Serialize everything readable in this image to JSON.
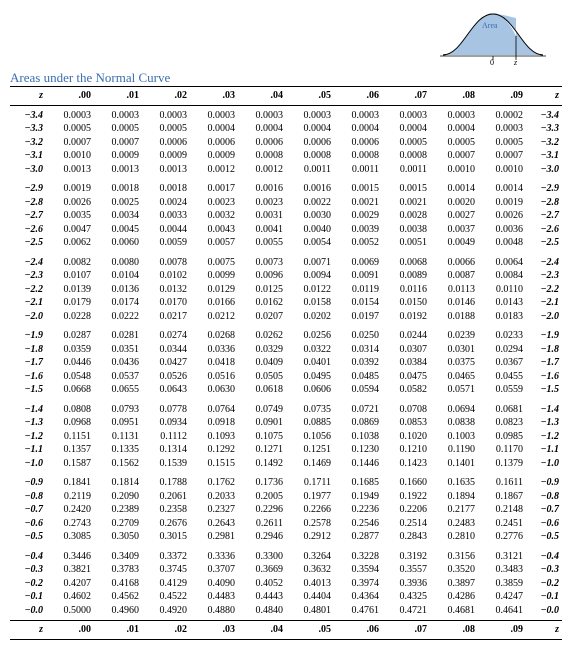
{
  "title": "Areas under the Normal Curve",
  "title_color": "#3a6fb0",
  "curve": {
    "label": "Area",
    "label_color": "#3a6fb0",
    "fill_color": "#a7c4e2",
    "line_color": "#3a6fb0",
    "axis_label_0": "0",
    "axis_label_z": "z"
  },
  "header": {
    "z": "z",
    "cols": [
      ".00",
      ".01",
      ".02",
      ".03",
      ".04",
      ".05",
      ".06",
      ".07",
      ".08",
      ".09"
    ]
  },
  "group_size": 5,
  "groups": [
    [
      {
        "z": "−3.4",
        "v": [
          "0.0003",
          "0.0003",
          "0.0003",
          "0.0003",
          "0.0003",
          "0.0003",
          "0.0003",
          "0.0003",
          "0.0003",
          "0.0002"
        ]
      },
      {
        "z": "−3.3",
        "v": [
          "0.0005",
          "0.0005",
          "0.0005",
          "0.0004",
          "0.0004",
          "0.0004",
          "0.0004",
          "0.0004",
          "0.0004",
          "0.0003"
        ]
      },
      {
        "z": "−3.2",
        "v": [
          "0.0007",
          "0.0007",
          "0.0006",
          "0.0006",
          "0.0006",
          "0.0006",
          "0.0006",
          "0.0005",
          "0.0005",
          "0.0005"
        ]
      },
      {
        "z": "−3.1",
        "v": [
          "0.0010",
          "0.0009",
          "0.0009",
          "0.0009",
          "0.0008",
          "0.0008",
          "0.0008",
          "0.0008",
          "0.0007",
          "0.0007"
        ]
      },
      {
        "z": "−3.0",
        "v": [
          "0.0013",
          "0.0013",
          "0.0013",
          "0.0012",
          "0.0012",
          "0.0011",
          "0.0011",
          "0.0011",
          "0.0010",
          "0.0010"
        ]
      }
    ],
    [
      {
        "z": "−2.9",
        "v": [
          "0.0019",
          "0.0018",
          "0.0018",
          "0.0017",
          "0.0016",
          "0.0016",
          "0.0015",
          "0.0015",
          "0.0014",
          "0.0014"
        ]
      },
      {
        "z": "−2.8",
        "v": [
          "0.0026",
          "0.0025",
          "0.0024",
          "0.0023",
          "0.0023",
          "0.0022",
          "0.0021",
          "0.0021",
          "0.0020",
          "0.0019"
        ]
      },
      {
        "z": "−2.7",
        "v": [
          "0.0035",
          "0.0034",
          "0.0033",
          "0.0032",
          "0.0031",
          "0.0030",
          "0.0029",
          "0.0028",
          "0.0027",
          "0.0026"
        ]
      },
      {
        "z": "−2.6",
        "v": [
          "0.0047",
          "0.0045",
          "0.0044",
          "0.0043",
          "0.0041",
          "0.0040",
          "0.0039",
          "0.0038",
          "0.0037",
          "0.0036"
        ]
      },
      {
        "z": "−2.5",
        "v": [
          "0.0062",
          "0.0060",
          "0.0059",
          "0.0057",
          "0.0055",
          "0.0054",
          "0.0052",
          "0.0051",
          "0.0049",
          "0.0048"
        ]
      }
    ],
    [
      {
        "z": "−2.4",
        "v": [
          "0.0082",
          "0.0080",
          "0.0078",
          "0.0075",
          "0.0073",
          "0.0071",
          "0.0069",
          "0.0068",
          "0.0066",
          "0.0064"
        ]
      },
      {
        "z": "−2.3",
        "v": [
          "0.0107",
          "0.0104",
          "0.0102",
          "0.0099",
          "0.0096",
          "0.0094",
          "0.0091",
          "0.0089",
          "0.0087",
          "0.0084"
        ]
      },
      {
        "z": "−2.2",
        "v": [
          "0.0139",
          "0.0136",
          "0.0132",
          "0.0129",
          "0.0125",
          "0.0122",
          "0.0119",
          "0.0116",
          "0.0113",
          "0.0110"
        ]
      },
      {
        "z": "−2.1",
        "v": [
          "0.0179",
          "0.0174",
          "0.0170",
          "0.0166",
          "0.0162",
          "0.0158",
          "0.0154",
          "0.0150",
          "0.0146",
          "0.0143"
        ]
      },
      {
        "z": "−2.0",
        "v": [
          "0.0228",
          "0.0222",
          "0.0217",
          "0.0212",
          "0.0207",
          "0.0202",
          "0.0197",
          "0.0192",
          "0.0188",
          "0.0183"
        ]
      }
    ],
    [
      {
        "z": "−1.9",
        "v": [
          "0.0287",
          "0.0281",
          "0.0274",
          "0.0268",
          "0.0262",
          "0.0256",
          "0.0250",
          "0.0244",
          "0.0239",
          "0.0233"
        ]
      },
      {
        "z": "−1.8",
        "v": [
          "0.0359",
          "0.0351",
          "0.0344",
          "0.0336",
          "0.0329",
          "0.0322",
          "0.0314",
          "0.0307",
          "0.0301",
          "0.0294"
        ]
      },
      {
        "z": "−1.7",
        "v": [
          "0.0446",
          "0.0436",
          "0.0427",
          "0.0418",
          "0.0409",
          "0.0401",
          "0.0392",
          "0.0384",
          "0.0375",
          "0.0367"
        ]
      },
      {
        "z": "−1.6",
        "v": [
          "0.0548",
          "0.0537",
          "0.0526",
          "0.0516",
          "0.0505",
          "0.0495",
          "0.0485",
          "0.0475",
          "0.0465",
          "0.0455"
        ]
      },
      {
        "z": "−1.5",
        "v": [
          "0.0668",
          "0.0655",
          "0.0643",
          "0.0630",
          "0.0618",
          "0.0606",
          "0.0594",
          "0.0582",
          "0.0571",
          "0.0559"
        ]
      }
    ],
    [
      {
        "z": "−1.4",
        "v": [
          "0.0808",
          "0.0793",
          "0.0778",
          "0.0764",
          "0.0749",
          "0.0735",
          "0.0721",
          "0.0708",
          "0.0694",
          "0.0681"
        ]
      },
      {
        "z": "−1.3",
        "v": [
          "0.0968",
          "0.0951",
          "0.0934",
          "0.0918",
          "0.0901",
          "0.0885",
          "0.0869",
          "0.0853",
          "0.0838",
          "0.0823"
        ]
      },
      {
        "z": "−1.2",
        "v": [
          "0.1151",
          "0.1131",
          "0.1112",
          "0.1093",
          "0.1075",
          "0.1056",
          "0.1038",
          "0.1020",
          "0.1003",
          "0.0985"
        ]
      },
      {
        "z": "−1.1",
        "v": [
          "0.1357",
          "0.1335",
          "0.1314",
          "0.1292",
          "0.1271",
          "0.1251",
          "0.1230",
          "0.1210",
          "0.1190",
          "0.1170"
        ]
      },
      {
        "z": "−1.0",
        "v": [
          "0.1587",
          "0.1562",
          "0.1539",
          "0.1515",
          "0.1492",
          "0.1469",
          "0.1446",
          "0.1423",
          "0.1401",
          "0.1379"
        ]
      }
    ],
    [
      {
        "z": "−0.9",
        "v": [
          "0.1841",
          "0.1814",
          "0.1788",
          "0.1762",
          "0.1736",
          "0.1711",
          "0.1685",
          "0.1660",
          "0.1635",
          "0.1611"
        ]
      },
      {
        "z": "−0.8",
        "v": [
          "0.2119",
          "0.2090",
          "0.2061",
          "0.2033",
          "0.2005",
          "0.1977",
          "0.1949",
          "0.1922",
          "0.1894",
          "0.1867"
        ]
      },
      {
        "z": "−0.7",
        "v": [
          "0.2420",
          "0.2389",
          "0.2358",
          "0.2327",
          "0.2296",
          "0.2266",
          "0.2236",
          "0.2206",
          "0.2177",
          "0.2148"
        ]
      },
      {
        "z": "−0.6",
        "v": [
          "0.2743",
          "0.2709",
          "0.2676",
          "0.2643",
          "0.2611",
          "0.2578",
          "0.2546",
          "0.2514",
          "0.2483",
          "0.2451"
        ]
      },
      {
        "z": "−0.5",
        "v": [
          "0.3085",
          "0.3050",
          "0.3015",
          "0.2981",
          "0.2946",
          "0.2912",
          "0.2877",
          "0.2843",
          "0.2810",
          "0.2776"
        ]
      }
    ],
    [
      {
        "z": "−0.4",
        "v": [
          "0.3446",
          "0.3409",
          "0.3372",
          "0.3336",
          "0.3300",
          "0.3264",
          "0.3228",
          "0.3192",
          "0.3156",
          "0.3121"
        ]
      },
      {
        "z": "−0.3",
        "v": [
          "0.3821",
          "0.3783",
          "0.3745",
          "0.3707",
          "0.3669",
          "0.3632",
          "0.3594",
          "0.3557",
          "0.3520",
          "0.3483"
        ]
      },
      {
        "z": "−0.2",
        "v": [
          "0.4207",
          "0.4168",
          "0.4129",
          "0.4090",
          "0.4052",
          "0.4013",
          "0.3974",
          "0.3936",
          "0.3897",
          "0.3859"
        ]
      },
      {
        "z": "−0.1",
        "v": [
          "0.4602",
          "0.4562",
          "0.4522",
          "0.4483",
          "0.4443",
          "0.4404",
          "0.4364",
          "0.4325",
          "0.4286",
          "0.4247"
        ]
      },
      {
        "z": "−0.0",
        "v": [
          "0.5000",
          "0.4960",
          "0.4920",
          "0.4880",
          "0.4840",
          "0.4801",
          "0.4761",
          "0.4721",
          "0.4681",
          "0.4641"
        ]
      }
    ]
  ]
}
